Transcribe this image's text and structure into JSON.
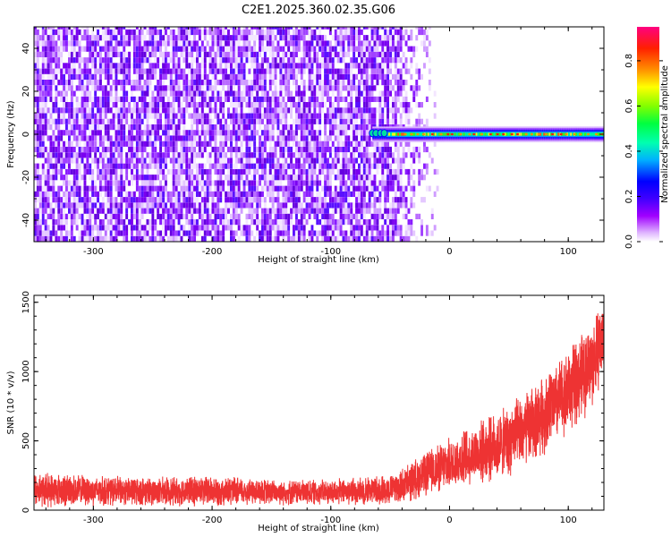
{
  "title": "C2E1.2025.360.02.35.G06",
  "chart_data": [
    {
      "type": "heatmap",
      "xlabel": "Height of straight line (km)",
      "ylabel": "Frequency (Hz)",
      "xlim": [
        -350,
        130
      ],
      "ylim": [
        -50,
        50
      ],
      "xticks": [
        -300,
        -200,
        -100,
        0,
        100
      ],
      "yticks": [
        -40,
        -20,
        0,
        20,
        40
      ],
      "noise_region_x": [
        -350,
        -50
      ],
      "signal_band": {
        "x": [
          -65,
          130
        ],
        "center_frequency": 0,
        "half_width": 2
      },
      "colorbar": {
        "label": "Normalized spectral amplitude",
        "ticks": [
          0.0,
          0.2,
          0.4,
          0.6,
          0.8
        ],
        "range": [
          0,
          0.95
        ],
        "colors": [
          "#ffffff",
          "#a000ff",
          "#4000ff",
          "#0000ff",
          "#00d0ff",
          "#00ff60",
          "#80ff00",
          "#ffff00",
          "#ff8000",
          "#ff0040",
          "#ff0080"
        ]
      }
    },
    {
      "type": "line",
      "xlabel": "Height of straight line (km)",
      "ylabel": "SNR (10 * v/v)",
      "xlim": [
        -350,
        130
      ],
      "ylim": [
        0,
        1550
      ],
      "xticks": [
        -300,
        -200,
        -100,
        0,
        100
      ],
      "yticks": [
        0,
        500,
        1000,
        1500
      ],
      "color": "#ee3333",
      "series": [
        {
          "x": [
            -350,
            -300,
            -250,
            -200,
            -150,
            -100,
            -75,
            -50,
            -40,
            -30,
            -20,
            -10,
            0,
            10,
            20,
            30,
            40,
            50,
            60,
            70,
            80,
            90,
            100,
            110,
            120,
            130
          ],
          "mean": [
            150,
            140,
            135,
            140,
            130,
            130,
            140,
            150,
            170,
            220,
            260,
            300,
            330,
            370,
            400,
            430,
            460,
            500,
            560,
            620,
            700,
            780,
            860,
            950,
            1060,
            1250
          ],
          "spread": [
            140,
            120,
            110,
            120,
            100,
            100,
            110,
            120,
            140,
            160,
            170,
            190,
            200,
            220,
            230,
            250,
            260,
            280,
            290,
            300,
            310,
            320,
            330,
            340,
            350,
            300
          ]
        }
      ]
    }
  ]
}
